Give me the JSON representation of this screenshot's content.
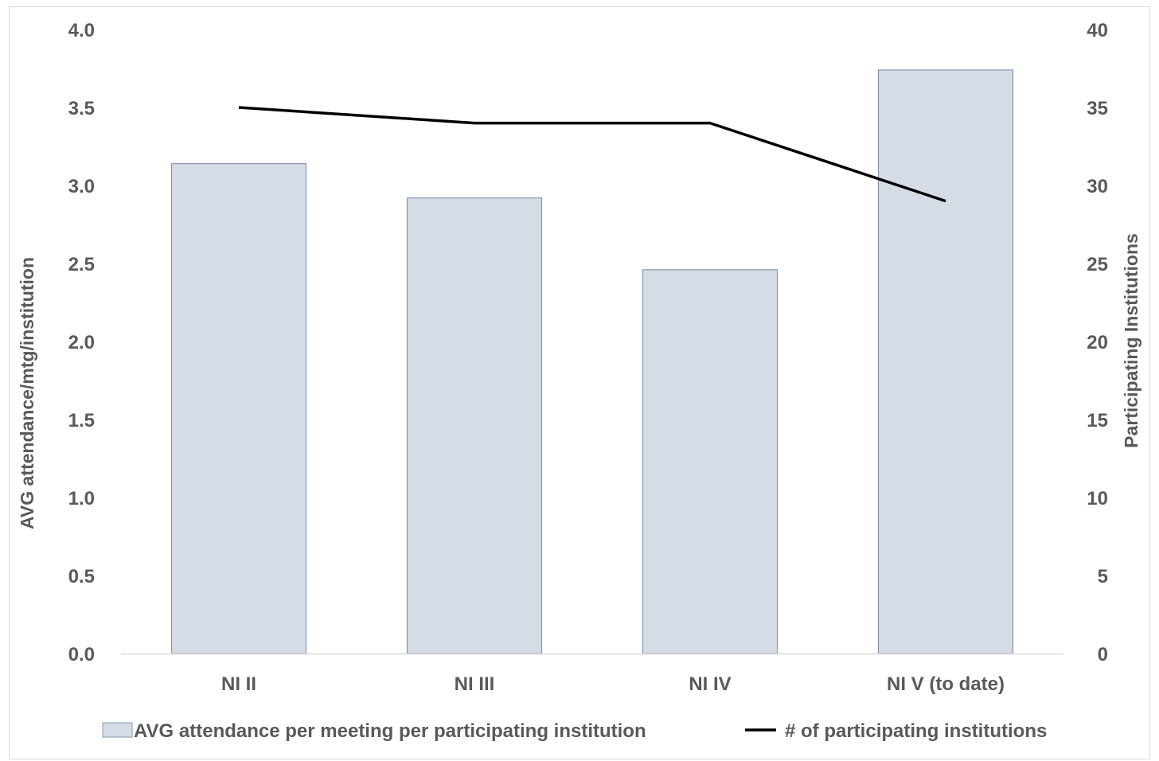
{
  "chart_data": {
    "type": "bar",
    "categories": [
      "NI II",
      "NI III",
      "NI IV",
      "NI V (to date)"
    ],
    "series": [
      {
        "name": "AVG attendance per meeting per participating institution",
        "type": "bar",
        "axis": "left",
        "values": [
          3.14,
          2.92,
          2.46,
          3.74
        ],
        "color": "#d6dce5",
        "stroke": "#8497b0"
      },
      {
        "name": "# of participating institutions",
        "type": "line",
        "axis": "right",
        "values": [
          35,
          34,
          34,
          29
        ],
        "color": "#000000"
      }
    ],
    "y_left": {
      "label": "AVG attendance/mtg/institution",
      "lim": [
        0,
        4
      ],
      "ticks": [
        "0.0",
        "0.5",
        "1.0",
        "1.5",
        "2.0",
        "2.5",
        "3.0",
        "3.5",
        "4.0"
      ]
    },
    "y_right": {
      "label": "Participating Institutions",
      "lim": [
        0,
        40
      ],
      "ticks": [
        "0",
        "5",
        "10",
        "15",
        "20",
        "25",
        "30",
        "35",
        "40"
      ]
    },
    "grid": false,
    "legend_position": "bottom"
  }
}
